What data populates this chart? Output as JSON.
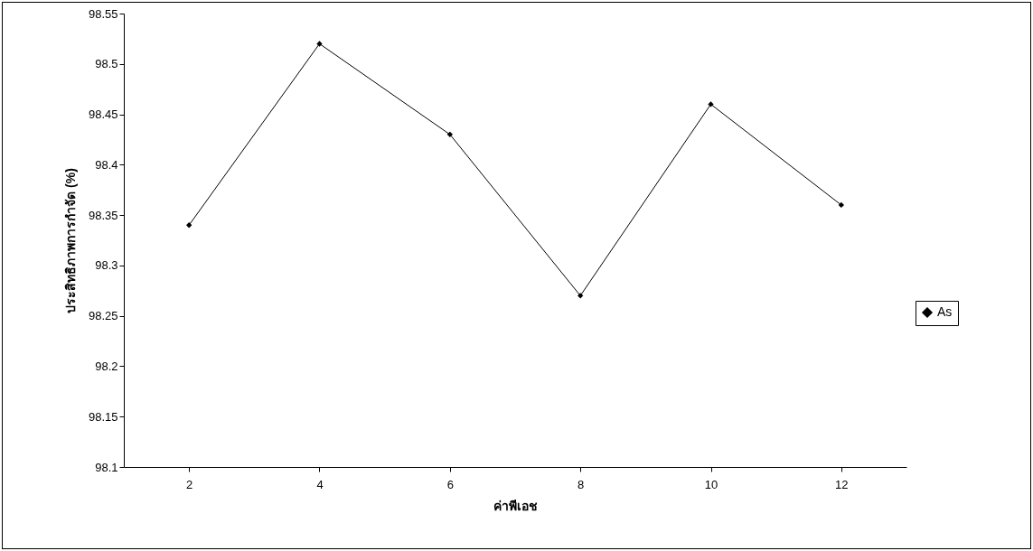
{
  "chart_data": {
    "type": "line",
    "xlabel": "ค่าพีเอช",
    "ylabel": "ประสิทธิภาพการกำจัด (%)",
    "categories": [
      "2",
      "4",
      "6",
      "8",
      "10",
      "12"
    ],
    "series": [
      {
        "name": "As",
        "color": "#000000",
        "values": [
          98.34,
          98.52,
          98.43,
          98.27,
          98.46,
          98.36
        ]
      }
    ],
    "ylim": [
      98.1,
      98.55
    ],
    "yticks": [
      98.1,
      98.15,
      98.2,
      98.25,
      98.3,
      98.35,
      98.4,
      98.45,
      98.5,
      98.55
    ],
    "grid": false,
    "legend": "right",
    "marker": "diamond",
    "line_style": "solid"
  }
}
